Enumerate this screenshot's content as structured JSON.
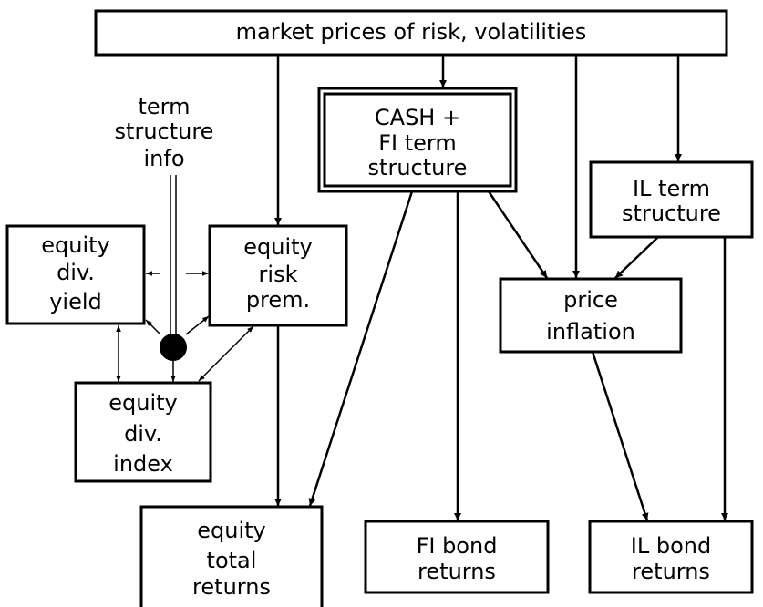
{
  "nodes": [
    {
      "id": "top",
      "lines": [
        "market prices of risk, volatilities"
      ]
    },
    {
      "id": "cash",
      "lines": [
        "CASH +",
        "FI term",
        "structure"
      ]
    },
    {
      "id": "tsinfo",
      "lines": [
        "term",
        "structure",
        "info"
      ]
    },
    {
      "id": "ilterm",
      "lines": [
        "IL term",
        "structure"
      ]
    },
    {
      "id": "divyield",
      "lines": [
        "equity",
        "div.",
        "yield"
      ]
    },
    {
      "id": "riskprem",
      "lines": [
        "equity",
        "risk",
        "prem."
      ]
    },
    {
      "id": "inflation",
      "lines": [
        "price",
        "inflation"
      ]
    },
    {
      "id": "divindex",
      "lines": [
        "equity",
        "div.",
        "index"
      ]
    },
    {
      "id": "totret",
      "lines": [
        "equity",
        "total",
        "returns"
      ]
    },
    {
      "id": "fibond",
      "lines": [
        "FI bond",
        "returns"
      ]
    },
    {
      "id": "ilbond",
      "lines": [
        "IL bond",
        "returns"
      ]
    }
  ]
}
